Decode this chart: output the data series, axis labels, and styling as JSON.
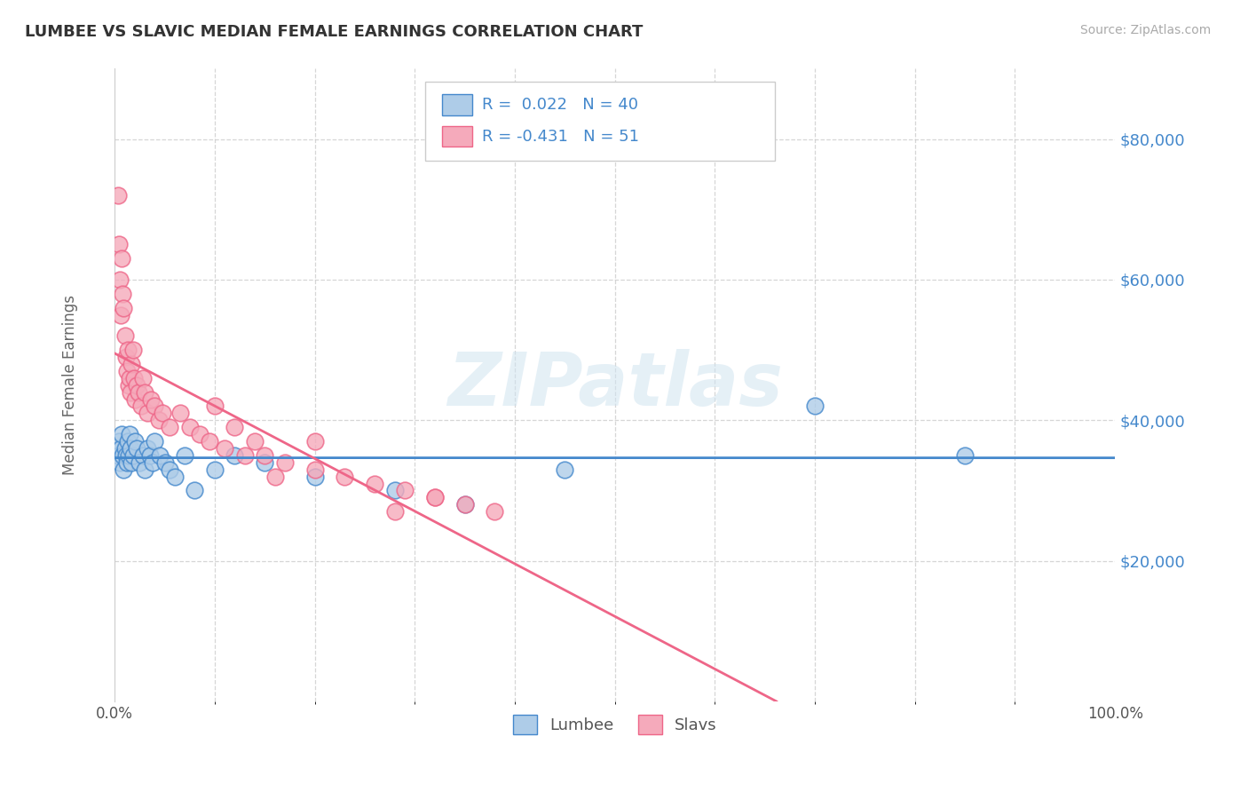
{
  "title": "LUMBEE VS SLAVIC MEDIAN FEMALE EARNINGS CORRELATION CHART",
  "source_text": "Source: ZipAtlas.com",
  "ylabel": "Median Female Earnings",
  "watermark": "ZIPatlas",
  "legend_lumbee": "Lumbee",
  "legend_slavs": "Slavs",
  "r_lumbee": 0.022,
  "n_lumbee": 40,
  "r_slavs": -0.431,
  "n_slavs": 51,
  "lumbee_color": "#aecce8",
  "slavs_color": "#f5aabb",
  "lumbee_line_color": "#4488cc",
  "slavs_line_color": "#ee6688",
  "xmin": 0.0,
  "xmax": 1.0,
  "ymin": 0,
  "ymax": 90000,
  "yticks": [
    20000,
    40000,
    60000,
    80000
  ],
  "ytick_labels": [
    "$20,000",
    "$40,000",
    "$60,000",
    "$80,000"
  ],
  "background_color": "#ffffff",
  "grid_color": "#cccccc",
  "title_color": "#333333",
  "lumbee_x": [
    0.003,
    0.004,
    0.005,
    0.006,
    0.007,
    0.008,
    0.009,
    0.01,
    0.011,
    0.012,
    0.013,
    0.014,
    0.015,
    0.016,
    0.017,
    0.018,
    0.02,
    0.022,
    0.025,
    0.028,
    0.03,
    0.033,
    0.035,
    0.038,
    0.04,
    0.045,
    0.05,
    0.055,
    0.06,
    0.07,
    0.08,
    0.1,
    0.12,
    0.15,
    0.2,
    0.28,
    0.35,
    0.45,
    0.7,
    0.85
  ],
  "lumbee_y": [
    35000,
    37000,
    34000,
    36000,
    38000,
    35000,
    33000,
    36000,
    35000,
    34000,
    37000,
    35000,
    38000,
    36000,
    34000,
    35000,
    37000,
    36000,
    34000,
    35000,
    33000,
    36000,
    35000,
    34000,
    37000,
    35000,
    34000,
    33000,
    32000,
    35000,
    30000,
    33000,
    35000,
    34000,
    32000,
    30000,
    28000,
    33000,
    42000,
    35000
  ],
  "slavs_x": [
    0.003,
    0.004,
    0.005,
    0.006,
    0.007,
    0.008,
    0.009,
    0.01,
    0.011,
    0.012,
    0.013,
    0.014,
    0.015,
    0.016,
    0.017,
    0.018,
    0.019,
    0.02,
    0.022,
    0.024,
    0.026,
    0.028,
    0.03,
    0.033,
    0.036,
    0.04,
    0.044,
    0.048,
    0.055,
    0.065,
    0.075,
    0.085,
    0.095,
    0.11,
    0.13,
    0.15,
    0.17,
    0.2,
    0.23,
    0.26,
    0.29,
    0.32,
    0.35,
    0.38,
    0.2,
    0.1,
    0.12,
    0.14,
    0.16,
    0.28,
    0.32
  ],
  "slavs_y": [
    72000,
    65000,
    60000,
    55000,
    63000,
    58000,
    56000,
    52000,
    49000,
    47000,
    50000,
    45000,
    46000,
    44000,
    48000,
    50000,
    46000,
    43000,
    45000,
    44000,
    42000,
    46000,
    44000,
    41000,
    43000,
    42000,
    40000,
    41000,
    39000,
    41000,
    39000,
    38000,
    37000,
    36000,
    35000,
    35000,
    34000,
    33000,
    32000,
    31000,
    30000,
    29000,
    28000,
    27000,
    37000,
    42000,
    39000,
    37000,
    32000,
    27000,
    29000
  ]
}
